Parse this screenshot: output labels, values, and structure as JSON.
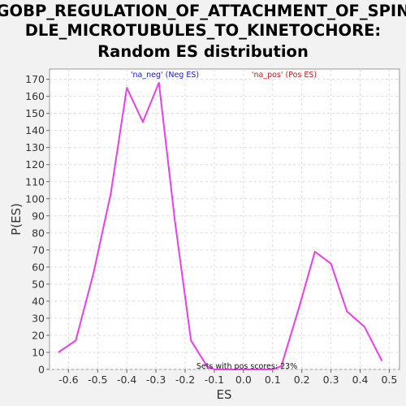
{
  "chart_data": {
    "type": "line",
    "title_lines": [
      "GOBP_REGULATION_OF_ATTACHMENT_OF_SPIN",
      "DLE_MICROTUBULES_TO_KINETOCHORE:",
      "Random ES distribution"
    ],
    "xlabel": "ES",
    "ylabel": "P(ES)",
    "xlim": [
      -0.665,
      0.535
    ],
    "ylim": [
      0,
      176
    ],
    "xticks": [
      -0.6,
      -0.5,
      -0.4,
      -0.3,
      -0.2,
      -0.1,
      0.0,
      0.1,
      0.2,
      0.3,
      0.4,
      0.5
    ],
    "xtick_labels": [
      "-0.6",
      "-0.5",
      "-0.4",
      "-0.3",
      "-0.2",
      "-0.1",
      "0.0",
      "0.1",
      "0.2",
      "0.3",
      "0.4",
      "0.5"
    ],
    "yticks": [
      0,
      10,
      20,
      30,
      40,
      50,
      60,
      70,
      80,
      90,
      100,
      110,
      120,
      130,
      140,
      150,
      160,
      170
    ],
    "grid": true,
    "series": [
      {
        "color": "#ee3cee",
        "points": [
          [
            -0.635,
            10
          ],
          [
            -0.575,
            17
          ],
          [
            -0.515,
            56
          ],
          [
            -0.455,
            103
          ],
          [
            -0.4,
            165
          ],
          [
            -0.345,
            145
          ],
          [
            -0.29,
            168
          ],
          [
            -0.235,
            87
          ],
          [
            -0.18,
            17
          ],
          [
            -0.125,
            2
          ],
          [
            -0.1,
            0
          ],
          [
            0.1,
            0
          ],
          [
            0.13,
            2
          ],
          [
            0.19,
            36
          ],
          [
            0.245,
            69
          ],
          [
            0.3,
            62
          ],
          [
            0.355,
            34
          ],
          [
            0.415,
            25
          ],
          [
            0.475,
            5
          ]
        ]
      }
    ],
    "annotations": {
      "neg_label": "'na_neg' (Neg ES)",
      "neg_color": "#1a1ac8",
      "pos_label": "'na_pos' (Pos ES)",
      "pos_color": "#d01818",
      "bottom_label": "Sets with pos scores: 23%",
      "bottom_color": "#111111"
    }
  }
}
